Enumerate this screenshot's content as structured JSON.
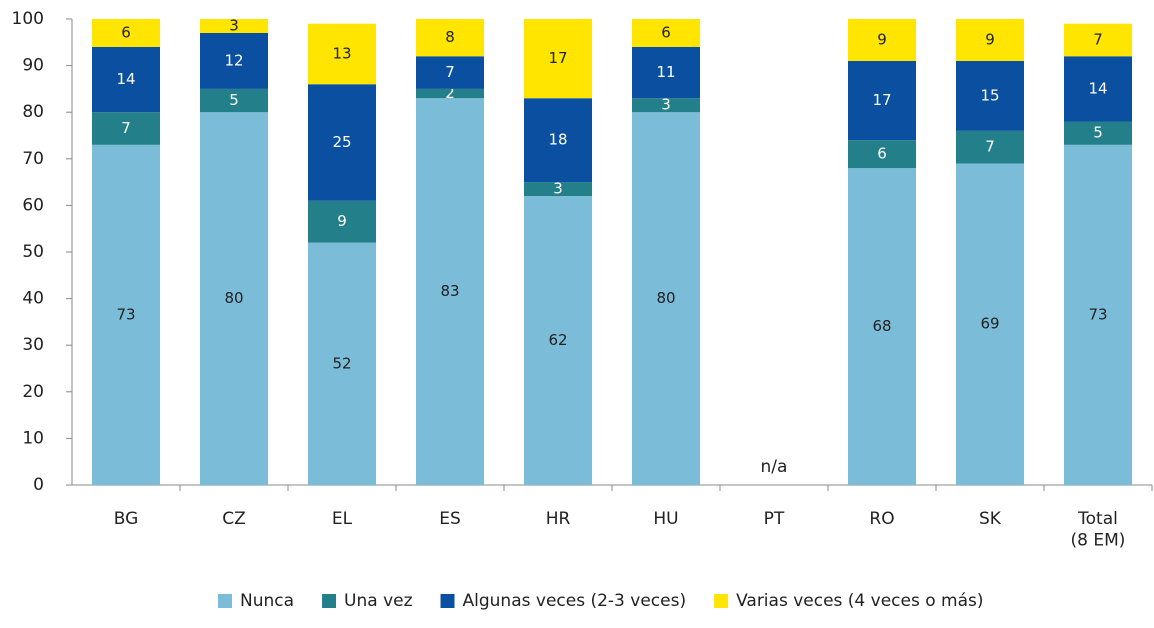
{
  "chart_data": {
    "type": "stacked_bar",
    "categories": [
      "BG",
      "CZ",
      "EL",
      "ES",
      "HR",
      "HU",
      "PT",
      "RO",
      "SK",
      "Total\n(8 EM)"
    ],
    "series": [
      {
        "name": "Nunca",
        "color": "#7bbcd8",
        "values": [
          73,
          80,
          52,
          83,
          62,
          80,
          null,
          68,
          69,
          73
        ]
      },
      {
        "name": "Una vez",
        "color": "#23808a",
        "values": [
          7,
          5,
          9,
          2,
          3,
          3,
          null,
          6,
          7,
          5
        ]
      },
      {
        "name": "Algunas veces (2-3 veces)",
        "color": "#0a4fa0",
        "values": [
          14,
          12,
          25,
          7,
          18,
          11,
          null,
          17,
          15,
          14
        ]
      },
      {
        "name": "Varias veces (4 veces o más)",
        "color": "#ffe500",
        "values": [
          6,
          3,
          13,
          8,
          17,
          6,
          null,
          9,
          9,
          7
        ]
      }
    ],
    "annotations": [
      {
        "text": "n/a",
        "category": "PT"
      }
    ],
    "ylim": [
      0,
      100
    ],
    "yticks": [
      0,
      10,
      20,
      30,
      40,
      50,
      60,
      70,
      80,
      90,
      100
    ],
    "grid": false,
    "legend": "bottom"
  }
}
